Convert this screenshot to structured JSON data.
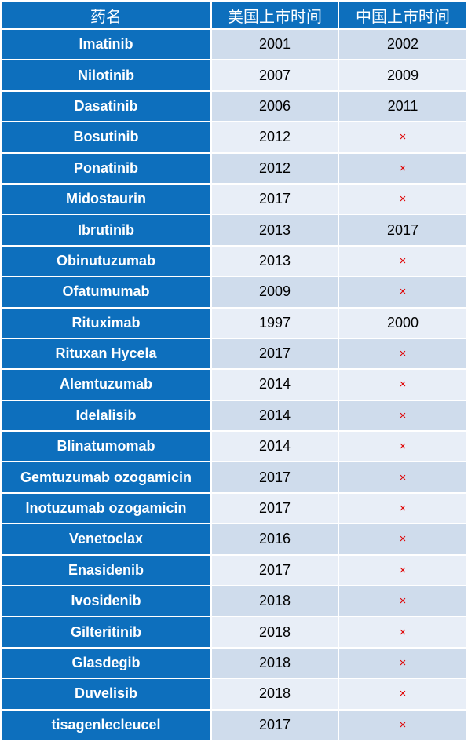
{
  "table": {
    "headers": [
      "药名",
      "美国上市时间",
      "中国上市时间"
    ],
    "not_approved_mark": "×",
    "colors": {
      "header_bg": "#0d6fbd",
      "drug_bg": "#0d6fbd",
      "row_odd_bg": "#cfdcec",
      "row_even_bg": "#e8eef7",
      "not_approved": "#e00000"
    },
    "rows": [
      {
        "drug": "Imatinib",
        "us": "2001",
        "cn": "2002"
      },
      {
        "drug": "Nilotinib",
        "us": "2007",
        "cn": "2009"
      },
      {
        "drug": "Dasatinib",
        "us": "2006",
        "cn": "2011"
      },
      {
        "drug": "Bosutinib",
        "us": "2012",
        "cn": null
      },
      {
        "drug": "Ponatinib",
        "us": "2012",
        "cn": null
      },
      {
        "drug": "Midostaurin",
        "us": "2017",
        "cn": null
      },
      {
        "drug": "Ibrutinib",
        "us": "2013",
        "cn": "2017"
      },
      {
        "drug": "Obinutuzumab",
        "us": "2013",
        "cn": null
      },
      {
        "drug": "Ofatumumab",
        "us": "2009",
        "cn": null
      },
      {
        "drug": "Rituximab",
        "us": "1997",
        "cn": "2000"
      },
      {
        "drug": "Rituxan Hycela",
        "us": "2017",
        "cn": null
      },
      {
        "drug": "Alemtuzumab",
        "us": "2014",
        "cn": null
      },
      {
        "drug": "Idelalisib",
        "us": "2014",
        "cn": null
      },
      {
        "drug": "Blinatumomab",
        "us": "2014",
        "cn": null
      },
      {
        "drug": "Gemtuzumab ozogamicin",
        "us": "2017",
        "cn": null
      },
      {
        "drug": "Inotuzumab ozogamicin",
        "us": "2017",
        "cn": null
      },
      {
        "drug": "Venetoclax",
        "us": "2016",
        "cn": null
      },
      {
        "drug": "Enasidenib",
        "us": "2017",
        "cn": null
      },
      {
        "drug": "Ivosidenib",
        "us": "2018",
        "cn": null
      },
      {
        "drug": "Gilteritinib",
        "us": "2018",
        "cn": null
      },
      {
        "drug": "Glasdegib",
        "us": "2018",
        "cn": null
      },
      {
        "drug": "Duvelisib",
        "us": "2018",
        "cn": null
      },
      {
        "drug": "tisagenlecleucel",
        "us": "2017",
        "cn": null
      }
    ]
  }
}
